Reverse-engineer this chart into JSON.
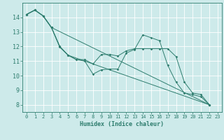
{
  "xlabel": "Humidex (Indice chaleur)",
  "bg_color": "#cdeaea",
  "grid_color": "#ffffff",
  "line_color": "#2e7d6e",
  "xlim": [
    -0.5,
    23.5
  ],
  "ylim": [
    7.5,
    15.0
  ],
  "yticks": [
    8,
    9,
    10,
    11,
    12,
    13,
    14
  ],
  "xticks": [
    0,
    1,
    2,
    3,
    4,
    5,
    6,
    7,
    8,
    9,
    10,
    11,
    12,
    13,
    14,
    15,
    16,
    17,
    18,
    19,
    20,
    21,
    22,
    23
  ],
  "line1_x": [
    0,
    1,
    2,
    3,
    4,
    5,
    6,
    7,
    8,
    9,
    10,
    11,
    12,
    13,
    14,
    15,
    16,
    17,
    18,
    19,
    20,
    21,
    22
  ],
  "line1_y": [
    14.2,
    14.5,
    14.1,
    13.3,
    11.95,
    11.4,
    11.1,
    11.0,
    10.1,
    10.4,
    10.45,
    10.45,
    11.55,
    11.8,
    12.8,
    12.6,
    12.4,
    10.7,
    9.55,
    8.8,
    8.7,
    8.55,
    8.0
  ],
  "line2_x": [
    0,
    1,
    2,
    3,
    4,
    5,
    6,
    7,
    8,
    9,
    10,
    11,
    12,
    13,
    14,
    15,
    16,
    17,
    18,
    19,
    20,
    21,
    22
  ],
  "line2_y": [
    14.2,
    14.5,
    14.1,
    13.3,
    12.0,
    11.4,
    11.1,
    11.1,
    10.8,
    11.45,
    11.45,
    11.35,
    11.7,
    11.85,
    11.85,
    11.85,
    11.85,
    11.85,
    11.3,
    9.55,
    8.8,
    8.7,
    8.0
  ],
  "line3_x": [
    0,
    1,
    2,
    3,
    4,
    5,
    22
  ],
  "line3_y": [
    14.2,
    14.5,
    14.1,
    13.3,
    12.0,
    11.4,
    8.0
  ],
  "line4_x": [
    0,
    1,
    2,
    3,
    22
  ],
  "line4_y": [
    14.2,
    14.5,
    14.1,
    13.3,
    8.0
  ]
}
